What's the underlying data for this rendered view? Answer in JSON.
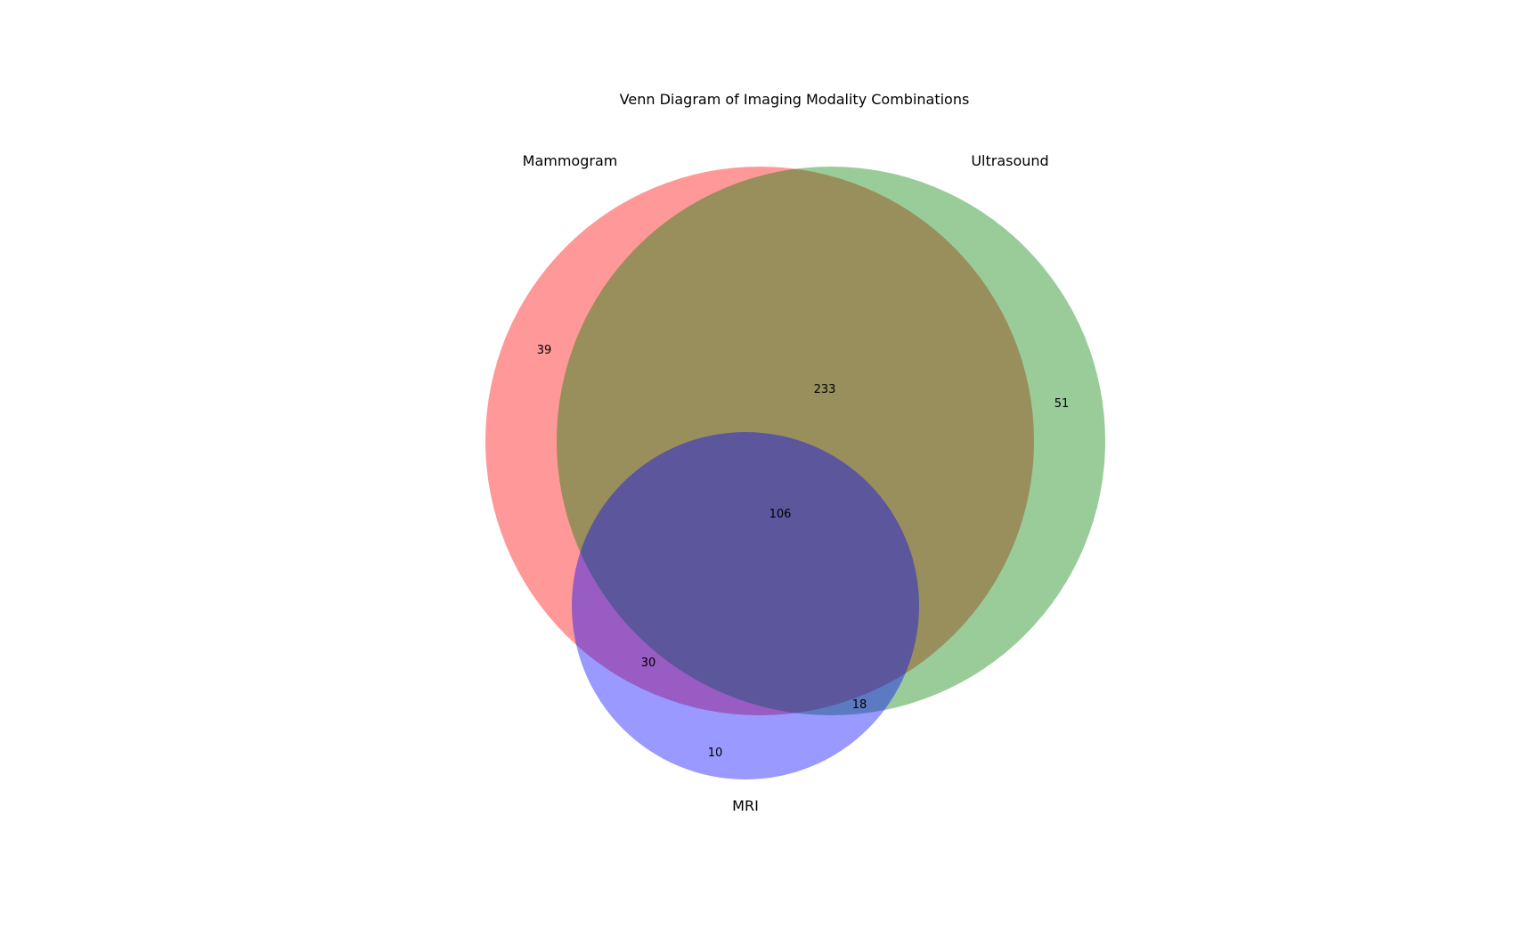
{
  "chart_data": {
    "type": "venn",
    "title": "Venn Diagram of Imaging Modality Combinations",
    "sets": [
      {
        "name": "Mammogram",
        "color": "#ff0000",
        "opacity": 0.4
      },
      {
        "name": "Ultrasound",
        "color": "#008000",
        "opacity": 0.4
      },
      {
        "name": "MRI",
        "color": "#0000ff",
        "opacity": 0.4
      }
    ],
    "regions": {
      "mammogram_only": 39,
      "ultrasound_only": 51,
      "mri_only": 10,
      "mammogram_ultrasound": 233,
      "mammogram_mri": 30,
      "ultrasound_mri": 18,
      "all_three": 106
    }
  }
}
